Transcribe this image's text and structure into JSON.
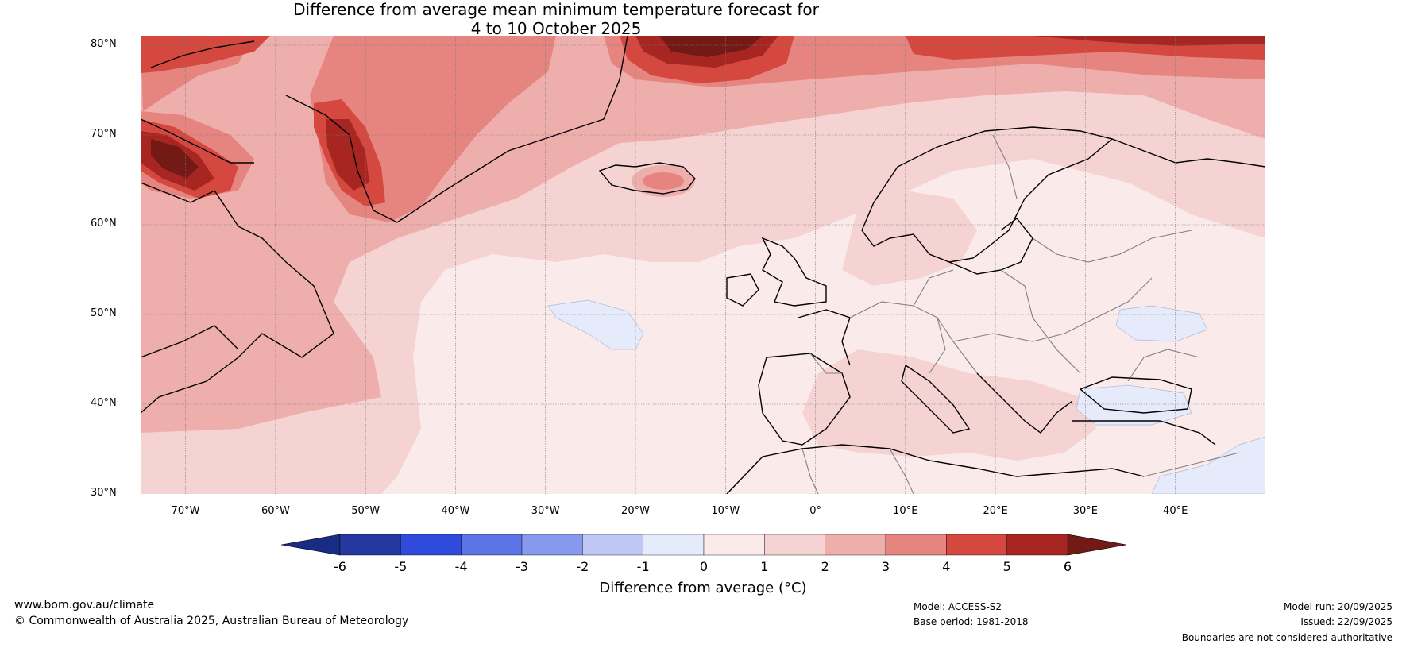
{
  "title": {
    "line1": "Difference from average mean minimum temperature forecast for",
    "line2": "4 to 10 October 2025"
  },
  "map": {
    "region": "North Atlantic and Europe",
    "lon_range": [
      -75,
      50
    ],
    "lat_range": [
      30,
      80
    ],
    "lat_labels": [
      "30°N",
      "40°N",
      "50°N",
      "60°N",
      "70°N",
      "80°N"
    ],
    "lon_labels": [
      "70°W",
      "60°W",
      "50°W",
      "40°W",
      "30°W",
      "20°W",
      "10°W",
      "0°",
      "10°E",
      "20°E",
      "30°E",
      "40°E"
    ]
  },
  "colorbar": {
    "label": "Difference from average (°C)",
    "ticks": [
      "-6",
      "-5",
      "-4",
      "-3",
      "-2",
      "-1",
      "0",
      "1",
      "2",
      "3",
      "4",
      "5",
      "6"
    ],
    "colors": [
      "#24389f",
      "#2f4bdb",
      "#5d74e6",
      "#8799ec",
      "#bfc8f4",
      "#e6ebfb",
      "#fbeaea",
      "#f5d3d3",
      "#eeaeac",
      "#e68580",
      "#d5483f",
      "#a82622"
    ],
    "under_color": "#182b85",
    "over_color": "#741a16"
  },
  "footer": {
    "website": "www.bom.gov.au/climate",
    "copyright": "© Commonwealth of Australia 2025, Australian Bureau of Meteorology",
    "model": "Model: ACCESS-S2",
    "base_period": "Base period: 1981-2018",
    "model_run": "Model run: 20/09/2025",
    "issued": "Issued: 22/09/2025",
    "disclaimer": "Boundaries are not considered authoritative"
  }
}
